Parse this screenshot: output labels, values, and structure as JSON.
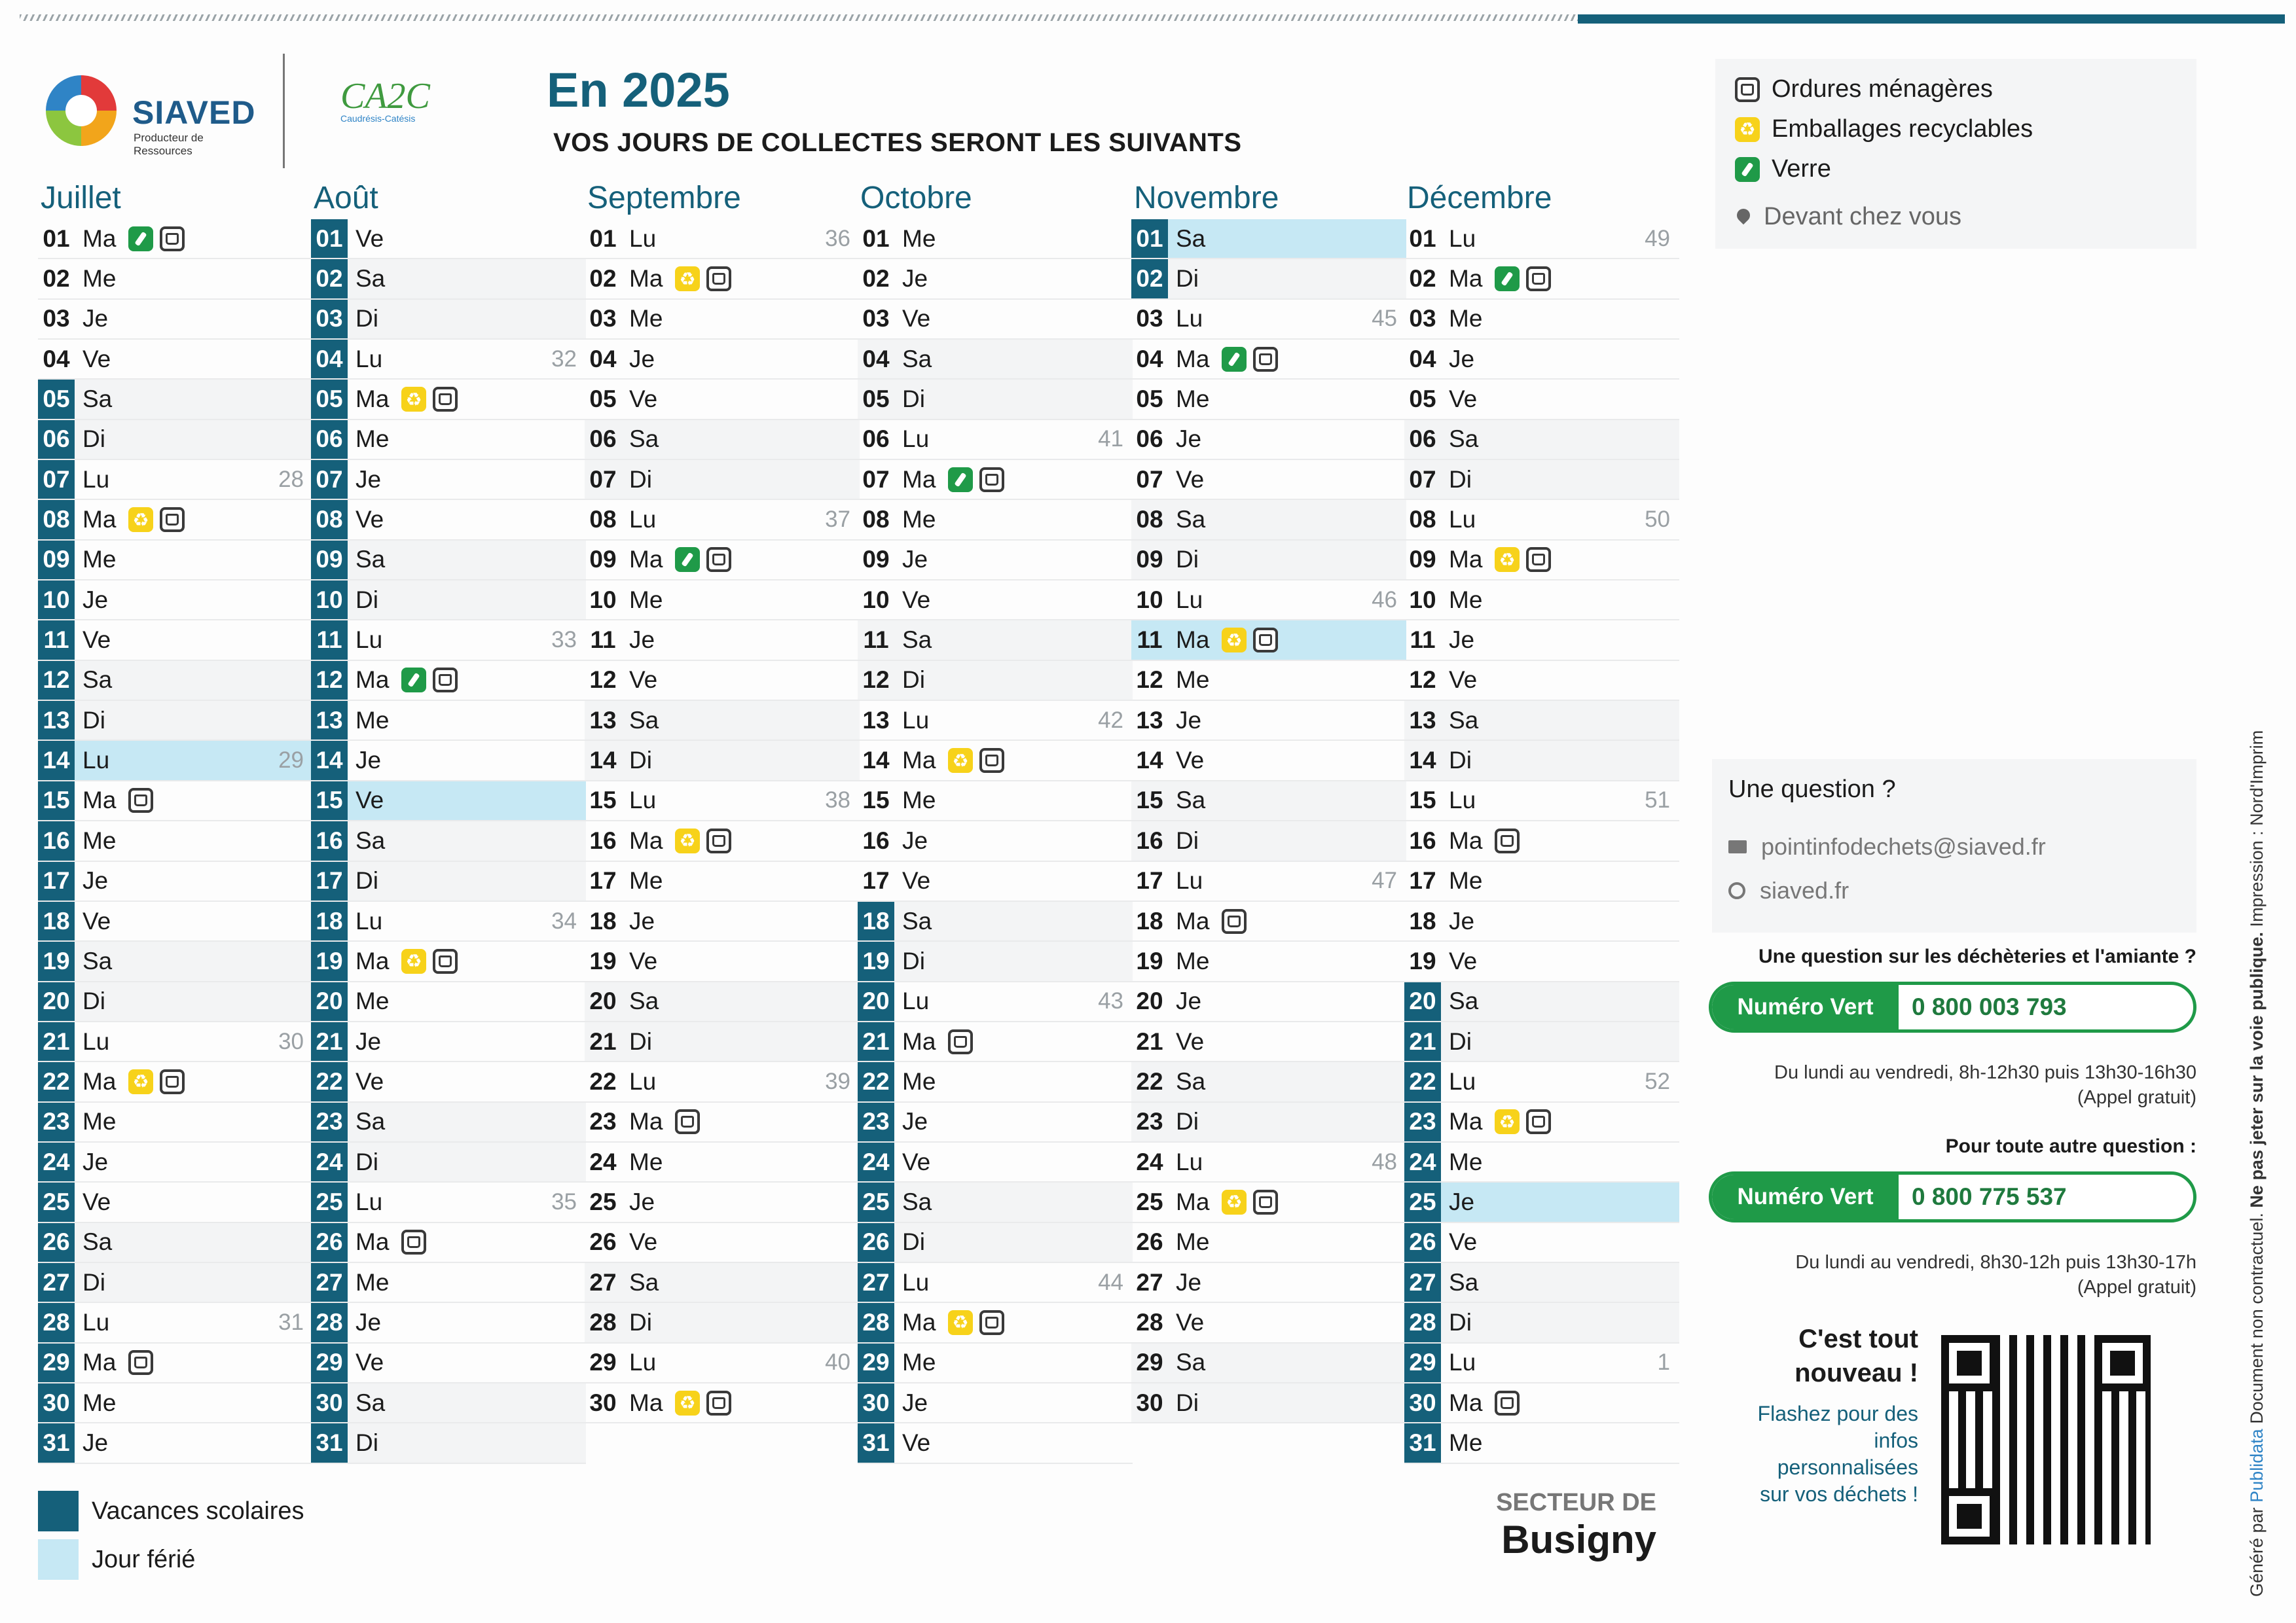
{
  "header": {
    "brand_name": "SIAVED",
    "brand_tagline": "Producteur de Ressources",
    "partner_logo_text": "CA2C",
    "partner_logo_sub": "Caudrésis-Catésis",
    "title": "En 2025",
    "subtitle": "VOS JOURS DE COLLECTES SERONT LES SUIVANTS"
  },
  "legend": {
    "ordures": "Ordures ménagères",
    "emballages": "Emballages recyclables",
    "verre": "Verre",
    "devant": "Devant chez vous"
  },
  "colors": {
    "accent": "#15607a",
    "holiday": "#c6e8f4",
    "green": "#1f9a48",
    "yellow": "#f7d21a"
  },
  "months": [
    {
      "name": "Juillet",
      "days": [
        {
          "d": "01",
          "w": "Ma",
          "icons": [
            "v",
            "o"
          ]
        },
        {
          "d": "02",
          "w": "Me"
        },
        {
          "d": "03",
          "w": "Je"
        },
        {
          "d": "04",
          "w": "Ve"
        },
        {
          "d": "05",
          "w": "Sa",
          "vac": 1
        },
        {
          "d": "06",
          "w": "Di",
          "vac": 1
        },
        {
          "d": "07",
          "w": "Lu",
          "vac": 1,
          "wk": "28"
        },
        {
          "d": "08",
          "w": "Ma",
          "vac": 1,
          "icons": [
            "e",
            "o"
          ]
        },
        {
          "d": "09",
          "w": "Me",
          "vac": 1
        },
        {
          "d": "10",
          "w": "Je",
          "vac": 1
        },
        {
          "d": "11",
          "w": "Ve",
          "vac": 1
        },
        {
          "d": "12",
          "w": "Sa",
          "vac": 1
        },
        {
          "d": "13",
          "w": "Di",
          "vac": 1
        },
        {
          "d": "14",
          "w": "Lu",
          "vac": 1,
          "hol": 1,
          "wk": "29"
        },
        {
          "d": "15",
          "w": "Ma",
          "vac": 1,
          "icons": [
            "o"
          ]
        },
        {
          "d": "16",
          "w": "Me",
          "vac": 1
        },
        {
          "d": "17",
          "w": "Je",
          "vac": 1
        },
        {
          "d": "18",
          "w": "Ve",
          "vac": 1
        },
        {
          "d": "19",
          "w": "Sa",
          "vac": 1
        },
        {
          "d": "20",
          "w": "Di",
          "vac": 1
        },
        {
          "d": "21",
          "w": "Lu",
          "vac": 1,
          "wk": "30"
        },
        {
          "d": "22",
          "w": "Ma",
          "vac": 1,
          "icons": [
            "e",
            "o"
          ]
        },
        {
          "d": "23",
          "w": "Me",
          "vac": 1
        },
        {
          "d": "24",
          "w": "Je",
          "vac": 1
        },
        {
          "d": "25",
          "w": "Ve",
          "vac": 1
        },
        {
          "d": "26",
          "w": "Sa",
          "vac": 1
        },
        {
          "d": "27",
          "w": "Di",
          "vac": 1
        },
        {
          "d": "28",
          "w": "Lu",
          "vac": 1,
          "wk": "31"
        },
        {
          "d": "29",
          "w": "Ma",
          "vac": 1,
          "icons": [
            "o"
          ]
        },
        {
          "d": "30",
          "w": "Me",
          "vac": 1
        },
        {
          "d": "31",
          "w": "Je",
          "vac": 1
        }
      ]
    },
    {
      "name": "Août",
      "days": [
        {
          "d": "01",
          "w": "Ve",
          "vac": 1
        },
        {
          "d": "02",
          "w": "Sa",
          "vac": 1
        },
        {
          "d": "03",
          "w": "Di",
          "vac": 1
        },
        {
          "d": "04",
          "w": "Lu",
          "vac": 1,
          "wk": "32"
        },
        {
          "d": "05",
          "w": "Ma",
          "vac": 1,
          "icons": [
            "e",
            "o"
          ]
        },
        {
          "d": "06",
          "w": "Me",
          "vac": 1
        },
        {
          "d": "07",
          "w": "Je",
          "vac": 1
        },
        {
          "d": "08",
          "w": "Ve",
          "vac": 1
        },
        {
          "d": "09",
          "w": "Sa",
          "vac": 1
        },
        {
          "d": "10",
          "w": "Di",
          "vac": 1
        },
        {
          "d": "11",
          "w": "Lu",
          "vac": 1,
          "wk": "33"
        },
        {
          "d": "12",
          "w": "Ma",
          "vac": 1,
          "icons": [
            "v",
            "o"
          ]
        },
        {
          "d": "13",
          "w": "Me",
          "vac": 1
        },
        {
          "d": "14",
          "w": "Je",
          "vac": 1
        },
        {
          "d": "15",
          "w": "Ve",
          "vac": 1,
          "hol": 1
        },
        {
          "d": "16",
          "w": "Sa",
          "vac": 1
        },
        {
          "d": "17",
          "w": "Di",
          "vac": 1
        },
        {
          "d": "18",
          "w": "Lu",
          "vac": 1,
          "wk": "34"
        },
        {
          "d": "19",
          "w": "Ma",
          "vac": 1,
          "icons": [
            "e",
            "o"
          ]
        },
        {
          "d": "20",
          "w": "Me",
          "vac": 1
        },
        {
          "d": "21",
          "w": "Je",
          "vac": 1
        },
        {
          "d": "22",
          "w": "Ve",
          "vac": 1
        },
        {
          "d": "23",
          "w": "Sa",
          "vac": 1
        },
        {
          "d": "24",
          "w": "Di",
          "vac": 1
        },
        {
          "d": "25",
          "w": "Lu",
          "vac": 1,
          "wk": "35"
        },
        {
          "d": "26",
          "w": "Ma",
          "vac": 1,
          "icons": [
            "o"
          ]
        },
        {
          "d": "27",
          "w": "Me",
          "vac": 1
        },
        {
          "d": "28",
          "w": "Je",
          "vac": 1
        },
        {
          "d": "29",
          "w": "Ve",
          "vac": 1
        },
        {
          "d": "30",
          "w": "Sa",
          "vac": 1
        },
        {
          "d": "31",
          "w": "Di",
          "vac": 1
        }
      ]
    },
    {
      "name": "Septembre",
      "days": [
        {
          "d": "01",
          "w": "Lu",
          "wk": "36"
        },
        {
          "d": "02",
          "w": "Ma",
          "icons": [
            "e",
            "o"
          ]
        },
        {
          "d": "03",
          "w": "Me"
        },
        {
          "d": "04",
          "w": "Je"
        },
        {
          "d": "05",
          "w": "Ve"
        },
        {
          "d": "06",
          "w": "Sa"
        },
        {
          "d": "07",
          "w": "Di"
        },
        {
          "d": "08",
          "w": "Lu",
          "wk": "37"
        },
        {
          "d": "09",
          "w": "Ma",
          "icons": [
            "v",
            "o"
          ]
        },
        {
          "d": "10",
          "w": "Me"
        },
        {
          "d": "11",
          "w": "Je"
        },
        {
          "d": "12",
          "w": "Ve"
        },
        {
          "d": "13",
          "w": "Sa"
        },
        {
          "d": "14",
          "w": "Di"
        },
        {
          "d": "15",
          "w": "Lu",
          "wk": "38"
        },
        {
          "d": "16",
          "w": "Ma",
          "icons": [
            "e",
            "o"
          ]
        },
        {
          "d": "17",
          "w": "Me"
        },
        {
          "d": "18",
          "w": "Je"
        },
        {
          "d": "19",
          "w": "Ve"
        },
        {
          "d": "20",
          "w": "Sa"
        },
        {
          "d": "21",
          "w": "Di"
        },
        {
          "d": "22",
          "w": "Lu",
          "wk": "39"
        },
        {
          "d": "23",
          "w": "Ma",
          "icons": [
            "o"
          ]
        },
        {
          "d": "24",
          "w": "Me"
        },
        {
          "d": "25",
          "w": "Je"
        },
        {
          "d": "26",
          "w": "Ve"
        },
        {
          "d": "27",
          "w": "Sa"
        },
        {
          "d": "28",
          "w": "Di"
        },
        {
          "d": "29",
          "w": "Lu",
          "wk": "40"
        },
        {
          "d": "30",
          "w": "Ma",
          "icons": [
            "e",
            "o"
          ]
        }
      ]
    },
    {
      "name": "Octobre",
      "days": [
        {
          "d": "01",
          "w": "Me"
        },
        {
          "d": "02",
          "w": "Je"
        },
        {
          "d": "03",
          "w": "Ve"
        },
        {
          "d": "04",
          "w": "Sa"
        },
        {
          "d": "05",
          "w": "Di"
        },
        {
          "d": "06",
          "w": "Lu",
          "wk": "41"
        },
        {
          "d": "07",
          "w": "Ma",
          "icons": [
            "v",
            "o"
          ]
        },
        {
          "d": "08",
          "w": "Me"
        },
        {
          "d": "09",
          "w": "Je"
        },
        {
          "d": "10",
          "w": "Ve"
        },
        {
          "d": "11",
          "w": "Sa"
        },
        {
          "d": "12",
          "w": "Di"
        },
        {
          "d": "13",
          "w": "Lu",
          "wk": "42"
        },
        {
          "d": "14",
          "w": "Ma",
          "icons": [
            "e",
            "o"
          ]
        },
        {
          "d": "15",
          "w": "Me"
        },
        {
          "d": "16",
          "w": "Je"
        },
        {
          "d": "17",
          "w": "Ve"
        },
        {
          "d": "18",
          "w": "Sa",
          "vac": 1
        },
        {
          "d": "19",
          "w": "Di",
          "vac": 1
        },
        {
          "d": "20",
          "w": "Lu",
          "vac": 1,
          "wk": "43"
        },
        {
          "d": "21",
          "w": "Ma",
          "vac": 1,
          "icons": [
            "o"
          ]
        },
        {
          "d": "22",
          "w": "Me",
          "vac": 1
        },
        {
          "d": "23",
          "w": "Je",
          "vac": 1
        },
        {
          "d": "24",
          "w": "Ve",
          "vac": 1
        },
        {
          "d": "25",
          "w": "Sa",
          "vac": 1
        },
        {
          "d": "26",
          "w": "Di",
          "vac": 1
        },
        {
          "d": "27",
          "w": "Lu",
          "vac": 1,
          "wk": "44"
        },
        {
          "d": "28",
          "w": "Ma",
          "vac": 1,
          "icons": [
            "e",
            "o"
          ]
        },
        {
          "d": "29",
          "w": "Me",
          "vac": 1
        },
        {
          "d": "30",
          "w": "Je",
          "vac": 1
        },
        {
          "d": "31",
          "w": "Ve",
          "vac": 1
        }
      ]
    },
    {
      "name": "Novembre",
      "days": [
        {
          "d": "01",
          "w": "Sa",
          "vac": 1,
          "hol": 1
        },
        {
          "d": "02",
          "w": "Di",
          "vac": 1
        },
        {
          "d": "03",
          "w": "Lu",
          "wk": "45"
        },
        {
          "d": "04",
          "w": "Ma",
          "icons": [
            "v",
            "o"
          ]
        },
        {
          "d": "05",
          "w": "Me"
        },
        {
          "d": "06",
          "w": "Je"
        },
        {
          "d": "07",
          "w": "Ve"
        },
        {
          "d": "08",
          "w": "Sa"
        },
        {
          "d": "09",
          "w": "Di"
        },
        {
          "d": "10",
          "w": "Lu",
          "wk": "46"
        },
        {
          "d": "11",
          "w": "Ma",
          "hol": 1,
          "icons": [
            "e",
            "o"
          ]
        },
        {
          "d": "12",
          "w": "Me"
        },
        {
          "d": "13",
          "w": "Je"
        },
        {
          "d": "14",
          "w": "Ve"
        },
        {
          "d": "15",
          "w": "Sa"
        },
        {
          "d": "16",
          "w": "Di"
        },
        {
          "d": "17",
          "w": "Lu",
          "wk": "47"
        },
        {
          "d": "18",
          "w": "Ma",
          "icons": [
            "o"
          ]
        },
        {
          "d": "19",
          "w": "Me"
        },
        {
          "d": "20",
          "w": "Je"
        },
        {
          "d": "21",
          "w": "Ve"
        },
        {
          "d": "22",
          "w": "Sa"
        },
        {
          "d": "23",
          "w": "Di"
        },
        {
          "d": "24",
          "w": "Lu",
          "wk": "48"
        },
        {
          "d": "25",
          "w": "Ma",
          "icons": [
            "e",
            "o"
          ]
        },
        {
          "d": "26",
          "w": "Me"
        },
        {
          "d": "27",
          "w": "Je"
        },
        {
          "d": "28",
          "w": "Ve"
        },
        {
          "d": "29",
          "w": "Sa"
        },
        {
          "d": "30",
          "w": "Di"
        }
      ]
    },
    {
      "name": "Décembre",
      "days": [
        {
          "d": "01",
          "w": "Lu",
          "wk": "49"
        },
        {
          "d": "02",
          "w": "Ma",
          "icons": [
            "v",
            "o"
          ]
        },
        {
          "d": "03",
          "w": "Me"
        },
        {
          "d": "04",
          "w": "Je"
        },
        {
          "d": "05",
          "w": "Ve"
        },
        {
          "d": "06",
          "w": "Sa"
        },
        {
          "d": "07",
          "w": "Di"
        },
        {
          "d": "08",
          "w": "Lu",
          "wk": "50"
        },
        {
          "d": "09",
          "w": "Ma",
          "icons": [
            "e",
            "o"
          ]
        },
        {
          "d": "10",
          "w": "Me"
        },
        {
          "d": "11",
          "w": "Je"
        },
        {
          "d": "12",
          "w": "Ve"
        },
        {
          "d": "13",
          "w": "Sa"
        },
        {
          "d": "14",
          "w": "Di"
        },
        {
          "d": "15",
          "w": "Lu",
          "wk": "51"
        },
        {
          "d": "16",
          "w": "Ma",
          "icons": [
            "o"
          ]
        },
        {
          "d": "17",
          "w": "Me"
        },
        {
          "d": "18",
          "w": "Je"
        },
        {
          "d": "19",
          "w": "Ve"
        },
        {
          "d": "20",
          "w": "Sa",
          "vac": 1
        },
        {
          "d": "21",
          "w": "Di",
          "vac": 1
        },
        {
          "d": "22",
          "w": "Lu",
          "vac": 1,
          "wk": "52"
        },
        {
          "d": "23",
          "w": "Ma",
          "vac": 1,
          "icons": [
            "e",
            "o"
          ]
        },
        {
          "d": "24",
          "w": "Me",
          "vac": 1
        },
        {
          "d": "25",
          "w": "Je",
          "vac": 1,
          "hol": 1
        },
        {
          "d": "26",
          "w": "Ve",
          "vac": 1
        },
        {
          "d": "27",
          "w": "Sa",
          "vac": 1
        },
        {
          "d": "28",
          "w": "Di",
          "vac": 1
        },
        {
          "d": "29",
          "w": "Lu",
          "vac": 1,
          "wk": "1"
        },
        {
          "d": "30",
          "w": "Ma",
          "vac": 1,
          "icons": [
            "o"
          ]
        },
        {
          "d": "31",
          "w": "Me",
          "vac": 1
        }
      ]
    }
  ],
  "contact": {
    "question": "Une question ?",
    "email": "pointinfodechets@siaved.fr",
    "website": "siaved.fr",
    "q_decheteries": "Une question sur les déchèteries et l'amiante ?",
    "nv_label": "Numéro Vert",
    "nv1_number": "0 800 003 793",
    "nv1_hours_1": "Du lundi au vendredi, 8h-12h30 puis 13h30-16h30",
    "nv1_hours_2": "(Appel gratuit)",
    "q_autre": "Pour toute autre question :",
    "nv2_number": "0 800 775 537",
    "nv2_hours_1": "Du lundi au vendredi, 8h30-12h puis 13h30-17h",
    "nv2_hours_2": "(Appel gratuit)"
  },
  "news": {
    "line1": "C'est tout",
    "line2": "nouveau !",
    "text1": "Flashez pour des",
    "text2": "infos",
    "text3": "personnalisées",
    "text4": "sur vos déchets !"
  },
  "sector": {
    "label": "SECTEUR DE",
    "name": "Busigny"
  },
  "bottom_legend": {
    "vacances": "Vacances scolaires",
    "ferie": "Jour férié"
  },
  "side_text": {
    "a": "Généré par",
    "b": "Publidata",
    "c": "Document non contractuel.",
    "d": "Ne pas jeter sur la voie publique.",
    "e": "Impression : Nord'Imprim"
  }
}
